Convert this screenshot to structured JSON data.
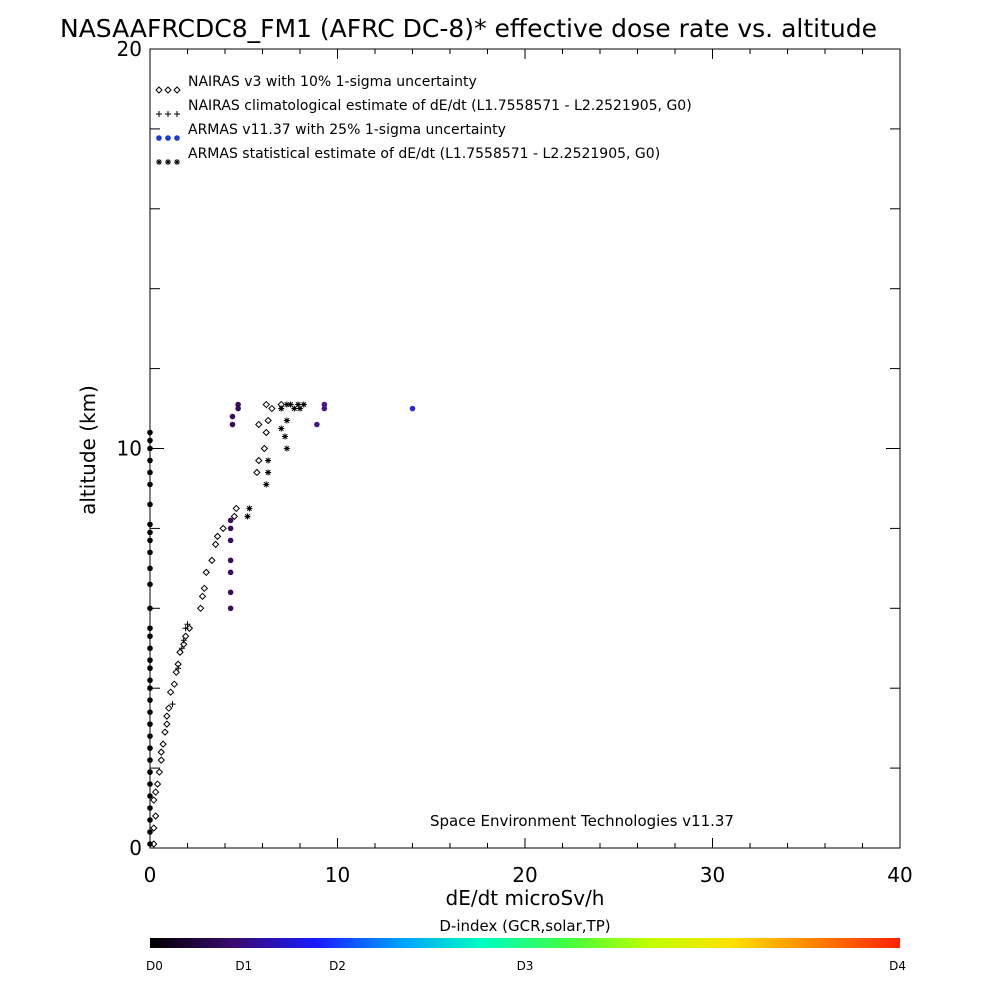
{
  "chart_data": {
    "type": "scatter",
    "title": "NASAAFRCDC8_FM1 (AFRC DC-8)* effective dose rate vs. altitude",
    "xlabel": "dE/dt microSv/h",
    "ylabel": "altitude (km)",
    "xlim": [
      0,
      40
    ],
    "ylim": [
      0,
      20
    ],
    "x_tick_labels": [
      "0",
      "10",
      "20",
      "30",
      "40"
    ],
    "y_tick_labels": [
      "0",
      "10",
      "20"
    ],
    "y_ticks": [
      0,
      10,
      20
    ],
    "x_ticks": [
      0,
      10,
      20,
      30,
      40
    ],
    "legend_position": "top-left",
    "legend": [
      {
        "symbol": "◇◇◇",
        "label": "NAIRAS v3 with 10% 1-sigma uncertainty"
      },
      {
        "symbol": "+++",
        "label": "NAIRAS climatological estimate of dE/dt (L1.7558571 - L2.2521905, G0)"
      },
      {
        "symbol": "●●●",
        "label": "ARMAS v11.37 with 25% 1-sigma uncertainty"
      },
      {
        "symbol": "✱✱✱",
        "label": "ARMAS statistical estimate of dE/dt (L1.7558571 - L2.2521905, G0)"
      }
    ],
    "annotation": "Space Environment Technologies v11.37",
    "colorbar": {
      "title": "D-index (GCR,solar,TP)",
      "labels": [
        {
          "text": "D0",
          "value": 0
        },
        {
          "text": "D1",
          "value": 5
        },
        {
          "text": "D2",
          "value": 10
        },
        {
          "text": "D3",
          "value": 20
        },
        {
          "text": "D4",
          "value": 40
        }
      ],
      "colors": [
        "#000000",
        "#3a0a6e",
        "#1a1aff",
        "#00a0ff",
        "#00ffc0",
        "#40ff40",
        "#c0ff00",
        "#ffe000",
        "#ff8000",
        "#ff2000"
      ]
    },
    "series": [
      {
        "name": "NAIRAS v3 with 10% 1-sigma uncertainty",
        "marker": "diamond",
        "points": [
          [
            0.2,
            0.1
          ],
          [
            0.2,
            0.5
          ],
          [
            0.3,
            0.8
          ],
          [
            0.2,
            1.2
          ],
          [
            0.3,
            1.4
          ],
          [
            0.4,
            1.6
          ],
          [
            0.5,
            1.9
          ],
          [
            0.6,
            2.2
          ],
          [
            0.6,
            2.4
          ],
          [
            0.7,
            2.6
          ],
          [
            0.8,
            2.9
          ],
          [
            0.9,
            3.1
          ],
          [
            0.9,
            3.3
          ],
          [
            1.0,
            3.5
          ],
          [
            1.1,
            3.9
          ],
          [
            1.3,
            4.1
          ],
          [
            1.4,
            4.4
          ],
          [
            1.5,
            4.6
          ],
          [
            1.6,
            4.9
          ],
          [
            1.8,
            5.1
          ],
          [
            1.9,
            5.3
          ],
          [
            2.1,
            5.5
          ],
          [
            2.7,
            6.0
          ],
          [
            2.8,
            6.3
          ],
          [
            2.9,
            6.5
          ],
          [
            3.0,
            6.9
          ],
          [
            3.3,
            7.2
          ],
          [
            3.5,
            7.6
          ],
          [
            3.6,
            7.8
          ],
          [
            3.9,
            8.0
          ],
          [
            4.5,
            8.3
          ],
          [
            4.6,
            8.5
          ],
          [
            5.7,
            9.4
          ],
          [
            5.8,
            9.7
          ],
          [
            6.1,
            10.0
          ],
          [
            6.2,
            10.4
          ],
          [
            6.3,
            10.7
          ],
          [
            5.8,
            10.6
          ],
          [
            6.5,
            11.0
          ],
          [
            6.2,
            11.1
          ],
          [
            7.0,
            11.1
          ]
        ]
      },
      {
        "name": "NAIRAS climatological estimate of dE/dt (L1.7558571 - L2.2521905, G0)",
        "marker": "plus",
        "points": [
          [
            1.2,
            3.6
          ],
          [
            1.5,
            4.5
          ],
          [
            1.7,
            5.0
          ],
          [
            1.8,
            5.2
          ],
          [
            1.9,
            5.5
          ],
          [
            2.0,
            5.6
          ]
        ]
      },
      {
        "name": "ARMAS v11.37 with 25% 1-sigma uncertainty",
        "marker": "dot",
        "points": [
          [
            0.0,
            10.4
          ],
          [
            0.0,
            10.2
          ],
          [
            0.0,
            10.0
          ],
          [
            0.0,
            9.7
          ],
          [
            0.0,
            9.4
          ],
          [
            0.0,
            9.1
          ],
          [
            0.0,
            8.6
          ],
          [
            0.0,
            8.1
          ],
          [
            0.0,
            7.9
          ],
          [
            0.0,
            7.7
          ],
          [
            0.0,
            7.4
          ],
          [
            0.0,
            7.0
          ],
          [
            0.0,
            6.6
          ],
          [
            0.0,
            6.0
          ],
          [
            0.0,
            5.5
          ],
          [
            0.0,
            5.3
          ],
          [
            0.0,
            5.0
          ],
          [
            0.0,
            4.7
          ],
          [
            0.0,
            4.5
          ],
          [
            0.0,
            4.2
          ],
          [
            0.0,
            4.0
          ],
          [
            0.0,
            3.7
          ],
          [
            0.0,
            3.4
          ],
          [
            0.0,
            3.1
          ],
          [
            0.0,
            2.8
          ],
          [
            0.0,
            2.5
          ],
          [
            0.0,
            2.2
          ],
          [
            0.0,
            1.9
          ],
          [
            0.0,
            1.6
          ],
          [
            0.0,
            1.3
          ],
          [
            0.0,
            1.0
          ],
          [
            0.0,
            0.7
          ],
          [
            0.0,
            0.4
          ],
          [
            0.0,
            0.1
          ],
          [
            4.3,
            6.0
          ],
          [
            4.3,
            6.4
          ],
          [
            4.3,
            6.9
          ],
          [
            4.3,
            7.2
          ],
          [
            4.3,
            7.7
          ],
          [
            4.3,
            8.0
          ],
          [
            4.3,
            8.2
          ],
          [
            4.4,
            10.6
          ],
          [
            4.4,
            10.8
          ],
          [
            4.7,
            11.0
          ],
          [
            4.7,
            11.1
          ],
          [
            8.9,
            10.6
          ],
          [
            9.3,
            11.0
          ],
          [
            9.3,
            11.1
          ],
          [
            14.0,
            11.0
          ]
        ]
      },
      {
        "name": "ARMAS statistical estimate of dE/dt (L1.7558571 - L2.2521905, G0)",
        "marker": "asterisk",
        "points": [
          [
            5.2,
            8.3
          ],
          [
            5.3,
            8.5
          ],
          [
            6.2,
            9.1
          ],
          [
            6.3,
            9.4
          ],
          [
            6.3,
            9.7
          ],
          [
            7.3,
            10.0
          ],
          [
            7.2,
            10.3
          ],
          [
            7.0,
            10.5
          ],
          [
            7.3,
            10.7
          ],
          [
            7.0,
            11.0
          ],
          [
            7.3,
            11.1
          ],
          [
            7.5,
            11.1
          ],
          [
            7.7,
            11.0
          ],
          [
            7.9,
            11.1
          ],
          [
            8.0,
            11.0
          ],
          [
            8.2,
            11.1
          ]
        ]
      }
    ]
  }
}
